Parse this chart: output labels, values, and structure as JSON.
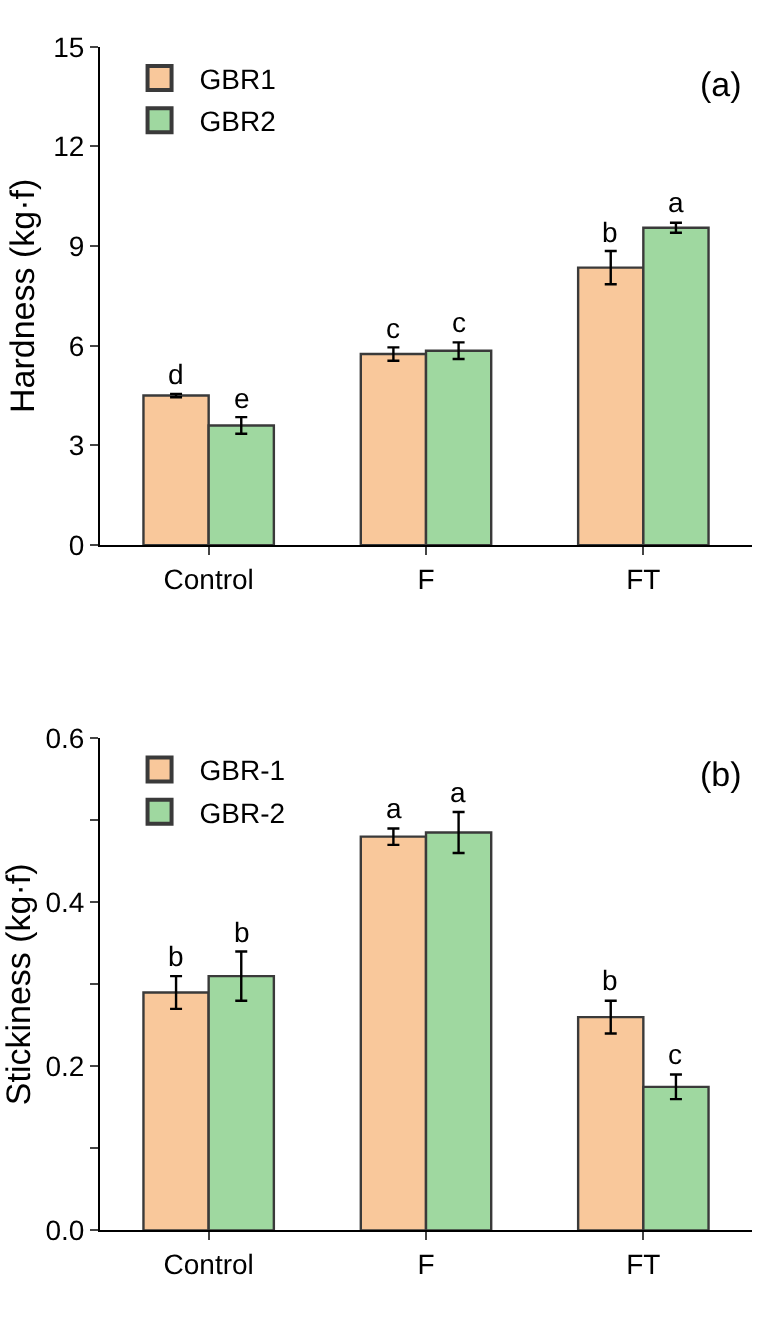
{
  "chart_data": [
    {
      "type": "bar",
      "ylabel": "Hardness (kg·f)",
      "categories": [
        "Control",
        "F",
        "FT"
      ],
      "series": [
        {
          "name": "GBR1",
          "color": "#f9c89b",
          "values": [
            4.5,
            5.75,
            8.35
          ],
          "errors": [
            0.05,
            0.2,
            0.5
          ]
        },
        {
          "name": "GBR2",
          "color": "#9fd8a0",
          "values": [
            3.6,
            5.85,
            9.55
          ],
          "errors": [
            0.25,
            0.25,
            0.15
          ]
        }
      ],
      "ylim": [
        0,
        15
      ],
      "yticks": [
        0,
        3,
        6,
        9,
        12,
        15
      ],
      "legend": "top left",
      "grid": false,
      "annotations": [
        "(a)",
        {
          "text": "d",
          "x": "Control",
          "y": 4.5
        },
        {
          "text": "e",
          "x": "Control",
          "y": 3.6
        },
        {
          "text": "c",
          "x": "F",
          "y": 5.75
        },
        {
          "text": "c",
          "x": "F",
          "y": 5.85
        },
        {
          "text": "b",
          "x": "FT",
          "y": 8.35
        },
        {
          "text": "a",
          "x": "FT",
          "y": 9.55
        }
      ]
    },
    {
      "type": "bar",
      "ylabel": "Stickiness (kg·f)",
      "categories": [
        "Control",
        "F",
        "FT"
      ],
      "series": [
        {
          "name": "GBR-1",
          "color": "#f9c89b",
          "values": [
            0.29,
            0.48,
            0.26
          ],
          "errors": [
            0.02,
            0.01,
            0.02
          ]
        },
        {
          "name": "GBR-2",
          "color": "#9fd8a0",
          "values": [
            0.31,
            0.485,
            0.175
          ],
          "errors": [
            0.03,
            0.025,
            0.015
          ]
        }
      ],
      "ylim": [
        0,
        0.6
      ],
      "yticks": [
        {
          "value": 0,
          "label": "0.0"
        },
        {
          "value": 0.1,
          "label": null
        },
        {
          "value": 0.2,
          "label": "0.2"
        },
        {
          "value": 0.3,
          "label": null
        },
        {
          "value": 0.4,
          "label": "0.4"
        },
        {
          "value": 0.5,
          "label": null
        },
        {
          "value": 0.6,
          "label": "0.6"
        }
      ],
      "legend": "top left",
      "grid": false,
      "annotations": [
        "(b)",
        {
          "text": "b",
          "x": "Control",
          "y": 0.29
        },
        {
          "text": "b",
          "x": "Control",
          "y": 0.31
        },
        {
          "text": "a",
          "x": "F",
          "y": 0.48
        },
        {
          "text": "a",
          "x": "F",
          "y": 0.485
        },
        {
          "text": "b",
          "x": "FT",
          "y": 0.26
        },
        {
          "text": "c",
          "x": "FT",
          "y": 0.175
        }
      ]
    }
  ]
}
